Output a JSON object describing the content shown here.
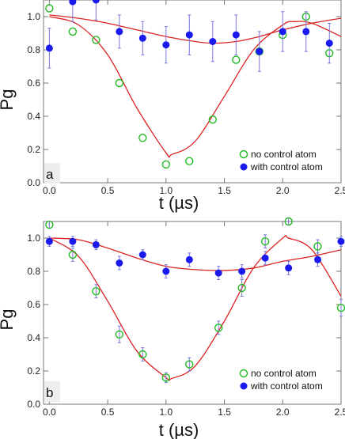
{
  "chart_data": [
    {
      "type": "scatter",
      "panel_label": "a",
      "xlabel": "t (µs)",
      "ylabel": "Pg",
      "xlim": [
        -0.05,
        2.5
      ],
      "ylim": [
        0.0,
        1.1
      ],
      "xticks": [
        0.0,
        0.5,
        1.0,
        1.5,
        2.0,
        2.5
      ],
      "yticks": [
        0.0,
        0.2,
        0.4,
        0.6,
        0.8,
        1.0
      ],
      "xtick_labels": [
        "0.0",
        "0.5",
        "1.0",
        "1.5",
        "2.0",
        "2.5"
      ],
      "ytick_labels": [
        "0.0",
        "0.2",
        "0.4",
        "0.6",
        "0.8",
        "1.0"
      ],
      "legend_position": "bottom-right",
      "series": [
        {
          "name": "no control atom",
          "marker": "open-circle",
          "color": "#22bb22",
          "x": [
            0.0,
            0.2,
            0.4,
            0.6,
            0.8,
            1.0,
            1.2,
            1.4,
            1.6,
            1.8,
            2.0,
            2.2,
            2.4
          ],
          "y": [
            1.05,
            0.91,
            0.86,
            0.6,
            0.27,
            0.11,
            0.13,
            0.38,
            0.74,
            0.79,
            0.89,
            1.0,
            0.78
          ]
        },
        {
          "name": "with control atom",
          "marker": "filled-circle",
          "color": "#1a1aee",
          "x": [
            0.0,
            0.2,
            0.4,
            0.6,
            0.8,
            1.0,
            1.2,
            1.4,
            1.6,
            1.8,
            2.0,
            2.2,
            2.4
          ],
          "y": [
            0.81,
            1.09,
            1.1,
            0.91,
            0.87,
            0.83,
            0.89,
            0.85,
            0.89,
            0.79,
            0.91,
            0.91,
            0.84
          ],
          "err": [
            0.12,
            0.12,
            0.12,
            0.1,
            0.1,
            0.11,
            0.12,
            0.12,
            0.12,
            0.12,
            0.12,
            0.12,
            0.12
          ]
        }
      ],
      "fits": [
        {
          "for": "no control atom",
          "color": "#dd2222",
          "x": [
            0.0,
            0.25,
            0.5,
            0.75,
            1.0,
            1.05,
            1.25,
            1.5,
            1.75,
            2.0,
            2.1,
            2.25,
            2.5
          ],
          "y": [
            1.0,
            0.95,
            0.77,
            0.45,
            0.18,
            0.17,
            0.25,
            0.52,
            0.8,
            0.95,
            0.97,
            0.96,
            0.88
          ]
        },
        {
          "for": "with control atom",
          "color": "#dd2222",
          "x": [
            0.0,
            0.25,
            0.5,
            0.75,
            1.0,
            1.25,
            1.4,
            1.6,
            1.8,
            2.0,
            2.25,
            2.5
          ],
          "y": [
            1.01,
            0.99,
            0.96,
            0.92,
            0.88,
            0.85,
            0.84,
            0.85,
            0.88,
            0.92,
            0.96,
            0.99
          ]
        }
      ]
    },
    {
      "type": "scatter",
      "panel_label": "b",
      "xlabel": "t (µs)",
      "ylabel": "Pg",
      "xlim": [
        -0.05,
        2.5
      ],
      "ylim": [
        0.0,
        1.1
      ],
      "xticks": [
        0.0,
        0.5,
        1.0,
        1.5,
        2.0,
        2.5
      ],
      "yticks": [
        0.0,
        0.2,
        0.4,
        0.6,
        0.8,
        1.0
      ],
      "xtick_labels": [
        "0.0",
        "0.5",
        "1.0",
        "1.5",
        "2.0",
        "2.5"
      ],
      "ytick_labels": [
        "0.0",
        "0.2",
        "0.4",
        "0.6",
        "0.8",
        "1.0"
      ],
      "legend_position": "bottom-right",
      "series": [
        {
          "name": "no control atom",
          "marker": "open-circle",
          "color": "#22bb22",
          "x": [
            0.0,
            0.2,
            0.4,
            0.6,
            0.8,
            1.0,
            1.2,
            1.45,
            1.65,
            1.85,
            2.05,
            2.3,
            2.5
          ],
          "y": [
            1.08,
            0.9,
            0.68,
            0.42,
            0.3,
            0.16,
            0.24,
            0.46,
            0.7,
            0.98,
            1.1,
            0.95,
            0.58
          ],
          "err": [
            0.02,
            0.04,
            0.04,
            0.05,
            0.04,
            0.03,
            0.04,
            0.04,
            0.05,
            0.04,
            0.02,
            0.04,
            0.05
          ]
        },
        {
          "name": "with control atom",
          "marker": "filled-circle",
          "color": "#1a1aee",
          "x": [
            0.0,
            0.2,
            0.4,
            0.6,
            0.8,
            1.0,
            1.2,
            1.45,
            1.65,
            1.85,
            2.05,
            2.3,
            2.5
          ],
          "y": [
            0.98,
            0.98,
            0.96,
            0.85,
            0.9,
            0.8,
            0.87,
            0.79,
            0.8,
            0.88,
            0.82,
            0.87,
            0.98
          ],
          "err": [
            0.03,
            0.03,
            0.03,
            0.04,
            0.03,
            0.04,
            0.04,
            0.04,
            0.04,
            0.04,
            0.04,
            0.04,
            0.03
          ]
        }
      ],
      "fits": [
        {
          "for": "no control atom",
          "color": "#dd2222",
          "x": [
            0.0,
            0.25,
            0.5,
            0.75,
            1.0,
            1.05,
            1.25,
            1.5,
            1.75,
            2.0,
            2.05,
            2.25,
            2.5
          ],
          "y": [
            1.0,
            0.89,
            0.62,
            0.32,
            0.16,
            0.155,
            0.23,
            0.5,
            0.82,
            1.0,
            1.0,
            0.93,
            0.65
          ]
        },
        {
          "for": "with control atom",
          "color": "#dd2222",
          "x": [
            0.0,
            0.25,
            0.5,
            0.75,
            1.0,
            1.25,
            1.5,
            1.75,
            2.0,
            2.25,
            2.5
          ],
          "y": [
            1.0,
            0.99,
            0.94,
            0.88,
            0.83,
            0.81,
            0.805,
            0.82,
            0.86,
            0.89,
            0.93
          ]
        }
      ]
    }
  ]
}
